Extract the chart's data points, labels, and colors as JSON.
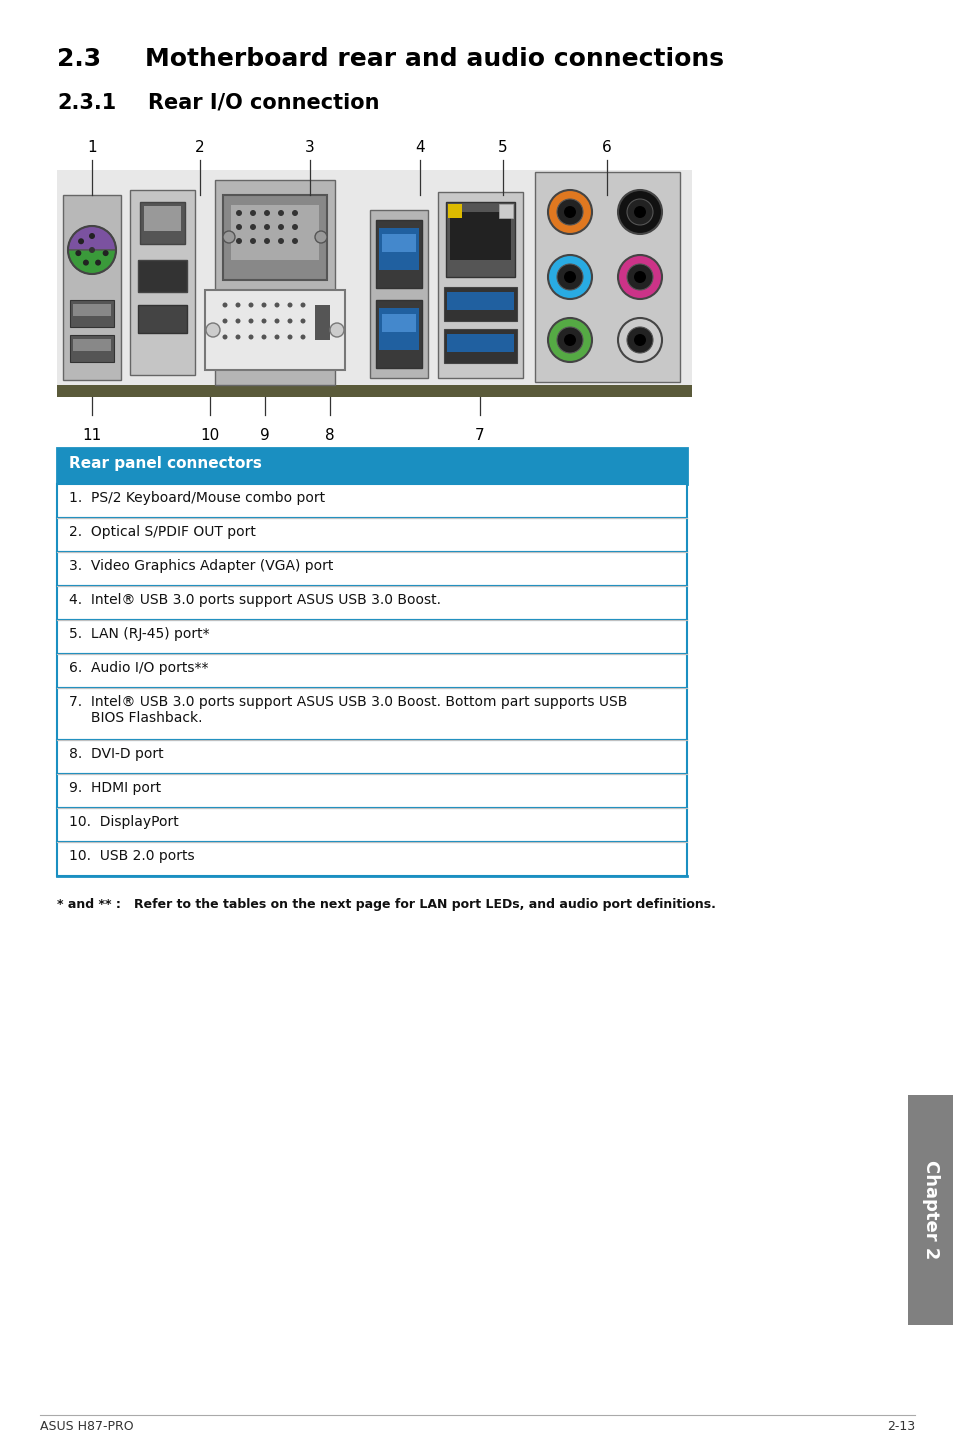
{
  "title_section": "2.3",
  "title_text": "Motherboard rear and audio connections",
  "subtitle_section": "2.3.1",
  "subtitle_text": "Rear I/O connection",
  "table_header": "Rear panel connectors",
  "table_header_bg": "#1a8fc1",
  "table_header_color": "#ffffff",
  "table_border_color": "#1a8fc1",
  "table_divider_color": "#c0c0c0",
  "table_rows": [
    "1.  PS/2 Keyboard/Mouse combo port",
    "2.  Optical S/PDIF OUT port",
    "3.  Video Graphics Adapter (VGA) port",
    "4.  Intel® USB 3.0 ports support ASUS USB 3.0 Boost.",
    "5.  LAN (RJ-45) port*",
    "6.  Audio I/O ports**",
    "7.  Intel® USB 3.0 ports support ASUS USB 3.0 Boost. Bottom part supports USB\n     BIOS Flashback.",
    "8.  DVI-D port",
    "9.  HDMI port",
    "10.  DisplayPort",
    "10.  USB 2.0 ports"
  ],
  "footnote": "* and ** :   Refer to the tables on the next page for LAN port LEDs, and audio port definitions.",
  "footer_left": "ASUS H87-PRO",
  "footer_right": "2-13",
  "chapter_tab_text": "Chapter 2",
  "chapter_tab_bg": "#808080",
  "background_color": "#ffffff"
}
